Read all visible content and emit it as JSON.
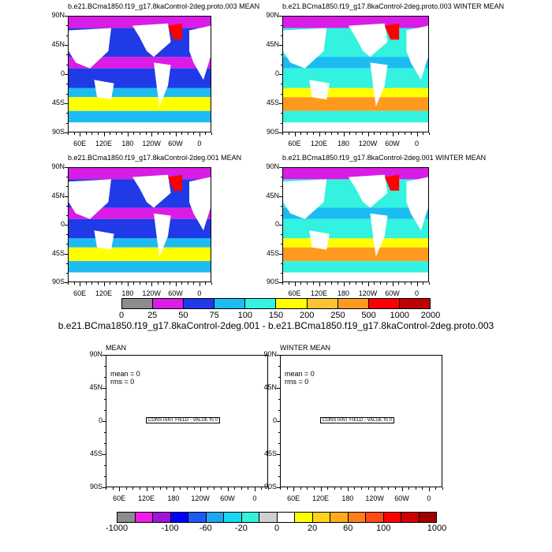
{
  "maps": [
    {
      "title": "b.e21.BCma1850.f19_g17.8kaControl-2deg.proto.003 MEAN"
    },
    {
      "title": "b.e21.BCma1850.f19_g17.8kaControl-2deg.proto.003 WINTER MEAN"
    },
    {
      "title": "b.e21.BCma1850.f19_g17.8kaControl-2deg.001 MEAN"
    },
    {
      "title": "b.e21.BCma1850.f19_g17.8kaControl-2deg.001 WINTER MEAN"
    }
  ],
  "diff_maps": [
    {
      "title": "MEAN",
      "mean_text": "mean = 0",
      "rms_text": "rms = 0",
      "constant_text": "CONSTANT FIELD - VALUE IS 0"
    },
    {
      "title": "WINTER MEAN",
      "mean_text": "mean = 0",
      "rms_text": "rms = 0",
      "constant_text": "CONSTANT FIELD - VALUE IS 0"
    }
  ],
  "diff_title": "b.e21.BCma1850.f19_g17.8kaControl-2deg.001 - b.e21.BCma1850.f19_g17.8kaControl-2deg.proto.003",
  "chart_data": [
    {
      "type": "heatmap",
      "y_ticks": [
        "90N",
        "45N",
        "0",
        "45S",
        "90S"
      ],
      "x_ticks": [
        "60E",
        "120E",
        "180",
        "120W",
        "60W",
        "0"
      ]
    },
    {
      "type": "colorbar",
      "levels": [
        "0",
        "25",
        "50",
        "75",
        "100",
        "150",
        "200",
        "250",
        "500",
        "1000",
        "2000"
      ],
      "colors": [
        "#8c8c8c",
        "#d91ce6",
        "#1f3ae6",
        "#1cbcf2",
        "#33f2e0",
        "#ffff00",
        "#ffc230",
        "#ff9a1f",
        "#ff0000",
        "#c00000"
      ]
    },
    {
      "type": "colorbar",
      "levels": [
        "-1000",
        "-100",
        "-60",
        "-20",
        "0",
        "20",
        "60",
        "100",
        "1000"
      ],
      "colors": [
        "#8c8c8c",
        "#f01ce6",
        "#a016d9",
        "#0000ff",
        "#1e5af5",
        "#1ca8f0",
        "#1cd6f2",
        "#33f2d9",
        "#cfcfcf",
        "#ffffff",
        "#ffff00",
        "#ffd31a",
        "#ffaa1a",
        "#ff7f1a",
        "#ff4a1a",
        "#ff0000",
        "#d00000",
        "#a00000"
      ]
    }
  ]
}
